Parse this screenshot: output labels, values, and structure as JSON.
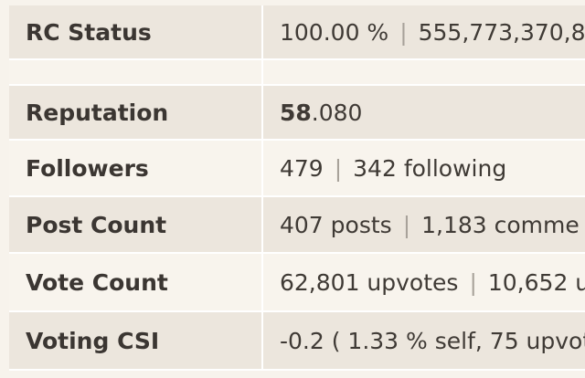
{
  "rows": {
    "rc_status": {
      "label": "RC Status",
      "value_a": "100.00 %",
      "value_b": "555,773,370,8"
    },
    "reputation": {
      "label": "Reputation",
      "value_bold": "58",
      "value_rest": ".080"
    },
    "followers": {
      "label": "Followers",
      "value_a": "479",
      "value_b": "342 following"
    },
    "post_count": {
      "label": "Post Count",
      "value_a": "407 posts",
      "value_b": "1,183 comme"
    },
    "vote_count": {
      "label": "Vote Count",
      "value_a": "62,801 upvotes",
      "value_b": "10,652 u"
    },
    "voting_csi": {
      "label": "Voting CSI",
      "value": "-0.2 ( 1.33 % self, 75 upvot"
    }
  },
  "separator": "|"
}
